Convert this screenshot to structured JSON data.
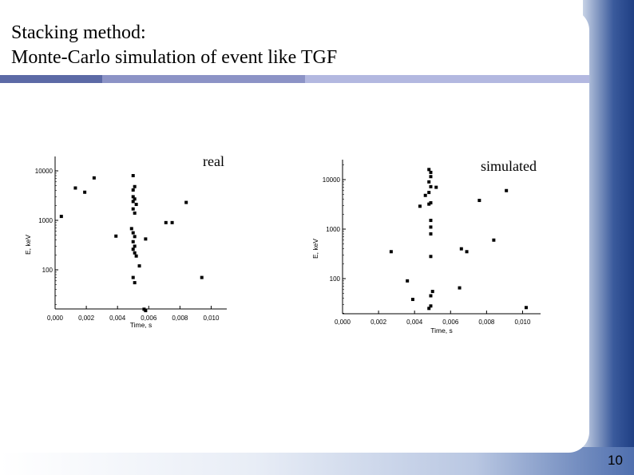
{
  "slide": {
    "title_line1": "Stacking method:",
    "title_line2": "Monte-Carlo simulation of event like TGF",
    "page_number": "10"
  },
  "colors": {
    "dark_blue": "#5c6aa6",
    "mid_blue": "#8c93c6",
    "light_blue": "#b3b8e0"
  },
  "chart_data": [
    {
      "type": "scatter",
      "title": "real",
      "xlabel": "Time, s",
      "ylabel": "E, keV",
      "xlim": [
        0.0,
        0.011
      ],
      "ylim": [
        10,
        20000
      ],
      "yscale": "log",
      "xticks": [
        "0,000",
        "0,002",
        "0,004",
        "0,006",
        "0,008",
        "0,010"
      ],
      "yticks": [
        "100",
        "1000",
        "10000"
      ],
      "points": [
        {
          "x": 0.0004,
          "y": 1200
        },
        {
          "x": 0.0013,
          "y": 4500
        },
        {
          "x": 0.0019,
          "y": 3700
        },
        {
          "x": 0.0025,
          "y": 7200
        },
        {
          "x": 0.0039,
          "y": 480
        },
        {
          "x": 0.005,
          "y": 8000
        },
        {
          "x": 0.0051,
          "y": 4800
        },
        {
          "x": 0.005,
          "y": 4100
        },
        {
          "x": 0.005,
          "y": 3000
        },
        {
          "x": 0.0051,
          "y": 2700
        },
        {
          "x": 0.005,
          "y": 2400
        },
        {
          "x": 0.0052,
          "y": 2100
        },
        {
          "x": 0.005,
          "y": 1700
        },
        {
          "x": 0.0051,
          "y": 1400
        },
        {
          "x": 0.0049,
          "y": 680
        },
        {
          "x": 0.005,
          "y": 560
        },
        {
          "x": 0.0051,
          "y": 470
        },
        {
          "x": 0.005,
          "y": 370
        },
        {
          "x": 0.0051,
          "y": 300
        },
        {
          "x": 0.005,
          "y": 260
        },
        {
          "x": 0.0051,
          "y": 220
        },
        {
          "x": 0.0052,
          "y": 190
        },
        {
          "x": 0.0054,
          "y": 120
        },
        {
          "x": 0.005,
          "y": 70
        },
        {
          "x": 0.0051,
          "y": 55
        },
        {
          "x": 0.0058,
          "y": 420
        },
        {
          "x": 0.0057,
          "y": 16
        },
        {
          "x": 0.0058,
          "y": 15
        },
        {
          "x": 0.0071,
          "y": 900
        },
        {
          "x": 0.0075,
          "y": 900
        },
        {
          "x": 0.0084,
          "y": 2300
        },
        {
          "x": 0.0094,
          "y": 70
        }
      ]
    },
    {
      "type": "scatter",
      "title": "simulated",
      "xlabel": "Time, s",
      "ylabel": "E, keV",
      "xlim": [
        0.0,
        0.011
      ],
      "ylim": [
        20,
        20000
      ],
      "yscale": "log",
      "xticks": [
        "0,000",
        "0,002",
        "0,004",
        "0,006",
        "0,008",
        "0,010"
      ],
      "yticks": [
        "100",
        "1000",
        "10000"
      ],
      "points": [
        {
          "x": 0.0027,
          "y": 350
        },
        {
          "x": 0.0036,
          "y": 90
        },
        {
          "x": 0.0039,
          "y": 38
        },
        {
          "x": 0.0043,
          "y": 2900
        },
        {
          "x": 0.0046,
          "y": 4800
        },
        {
          "x": 0.0048,
          "y": 16000
        },
        {
          "x": 0.0049,
          "y": 14000
        },
        {
          "x": 0.0049,
          "y": 11500
        },
        {
          "x": 0.0048,
          "y": 9000
        },
        {
          "x": 0.0049,
          "y": 7200
        },
        {
          "x": 0.0048,
          "y": 5500
        },
        {
          "x": 0.0049,
          "y": 3400
        },
        {
          "x": 0.0048,
          "y": 3200
        },
        {
          "x": 0.0052,
          "y": 7000
        },
        {
          "x": 0.0049,
          "y": 1500
        },
        {
          "x": 0.0049,
          "y": 1100
        },
        {
          "x": 0.0049,
          "y": 800
        },
        {
          "x": 0.0049,
          "y": 280
        },
        {
          "x": 0.005,
          "y": 55
        },
        {
          "x": 0.0049,
          "y": 45
        },
        {
          "x": 0.0049,
          "y": 28
        },
        {
          "x": 0.0048,
          "y": 25
        },
        {
          "x": 0.0065,
          "y": 65
        },
        {
          "x": 0.0066,
          "y": 400
        },
        {
          "x": 0.0069,
          "y": 350
        },
        {
          "x": 0.0076,
          "y": 3800
        },
        {
          "x": 0.0084,
          "y": 600
        },
        {
          "x": 0.0091,
          "y": 6000
        },
        {
          "x": 0.0102,
          "y": 26
        }
      ]
    }
  ]
}
